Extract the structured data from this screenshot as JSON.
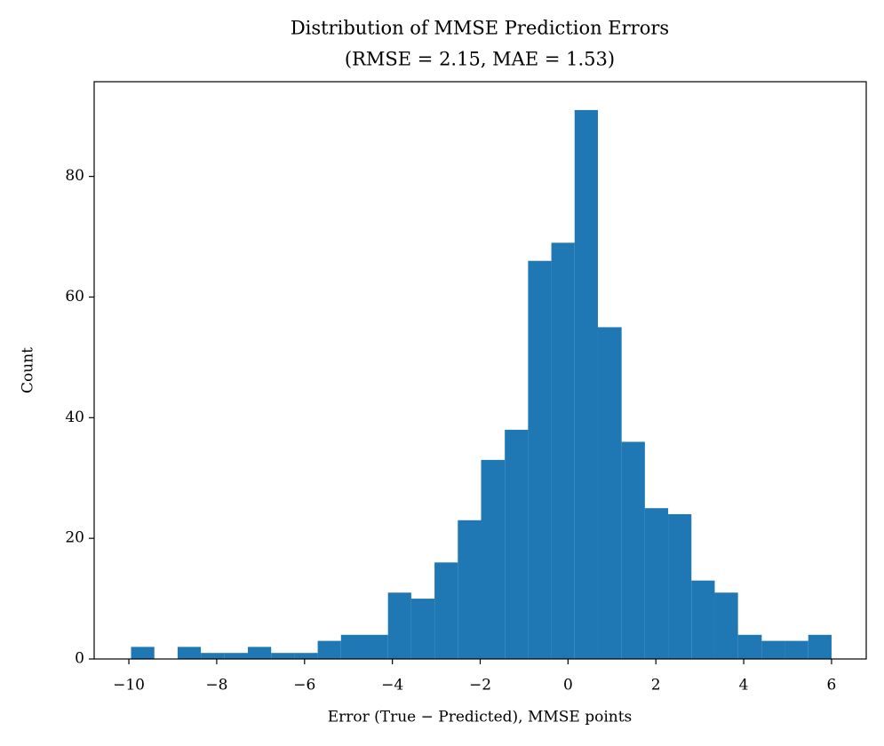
{
  "chart_data": {
    "type": "histogram",
    "title": "Distribution of MMSE Prediction Errors",
    "subtitle": "(RMSE = 2.15, MAE = 1.53)",
    "x_label": "Error (True − Predicted), MMSE points",
    "y_label": "Count",
    "color": "#1f77b4",
    "bins": [
      -9.95,
      -9.42,
      -8.89,
      -8.36,
      -7.82,
      -7.29,
      -6.76,
      -6.23,
      -5.7,
      -5.17,
      -4.63,
      -4.1,
      -3.57,
      -3.04,
      -2.51,
      -1.98,
      -1.44,
      -0.91,
      -0.38,
      0.15,
      0.68,
      1.22,
      1.75,
      2.28,
      2.81,
      3.34,
      3.87,
      4.41,
      4.94,
      5.47,
      6.0
    ],
    "counts": [
      2,
      0,
      2,
      1,
      1,
      2,
      1,
      1,
      3,
      4,
      4,
      11,
      10,
      16,
      23,
      33,
      38,
      66,
      69,
      91,
      55,
      36,
      25,
      24,
      13,
      11,
      4,
      3,
      3,
      4
    ],
    "xlim": [
      -10.79,
      6.79
    ],
    "ylim": [
      0,
      95.7
    ],
    "xticks": [
      {
        "value": -10,
        "label": "−10"
      },
      {
        "value": -8,
        "label": "−8"
      },
      {
        "value": -6,
        "label": "−6"
      },
      {
        "value": -4,
        "label": "−4"
      },
      {
        "value": -2,
        "label": "−2"
      },
      0,
      2,
      4,
      6
    ],
    "yticks": [
      0,
      20,
      40,
      60,
      80
    ],
    "grid": false
  }
}
